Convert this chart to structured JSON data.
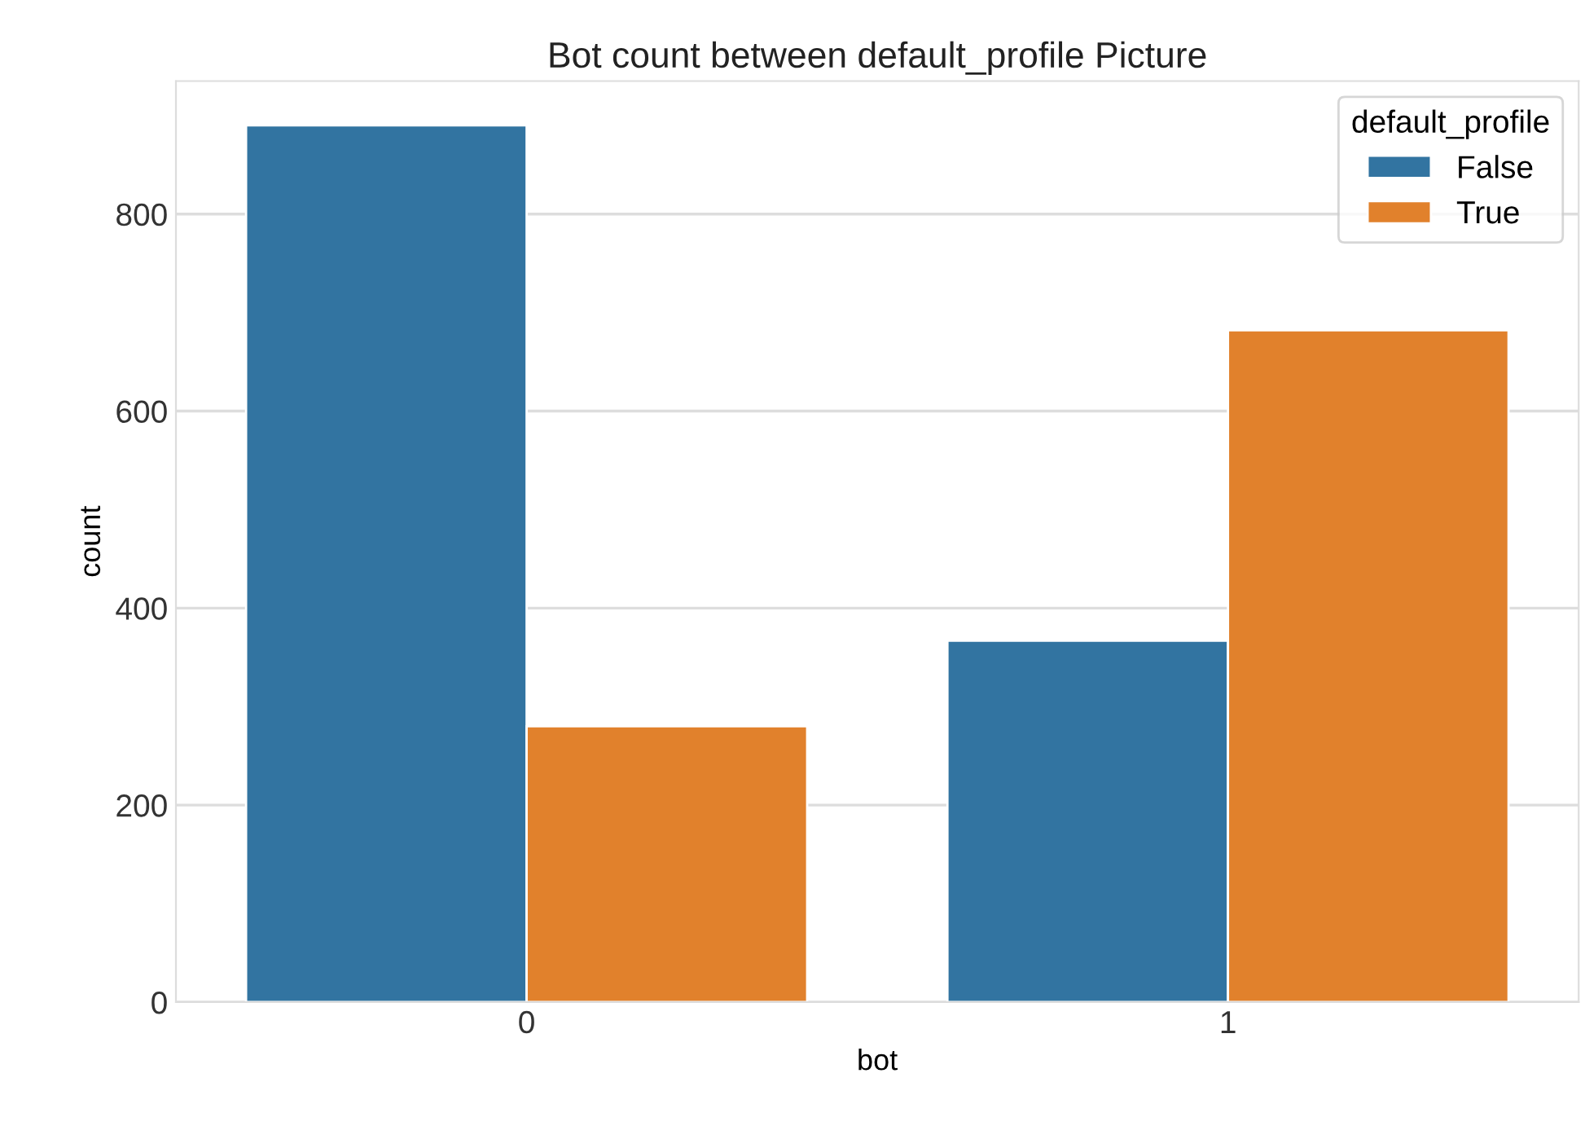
{
  "chart_data": {
    "type": "bar",
    "title": "Bot count between default_profile Picture",
    "xlabel": "bot",
    "ylabel": "count",
    "legend_title": "default_profile",
    "categories": [
      "0",
      "1"
    ],
    "series": [
      {
        "name": "False",
        "color": "#3274a1",
        "values": [
          890,
          367
        ]
      },
      {
        "name": "True",
        "color": "#e1812c",
        "values": [
          280,
          682
        ]
      }
    ],
    "ylim": [
      0,
      935
    ],
    "yticks": [
      0,
      200,
      400,
      600,
      800
    ],
    "grid": "y",
    "legend": "top right"
  }
}
